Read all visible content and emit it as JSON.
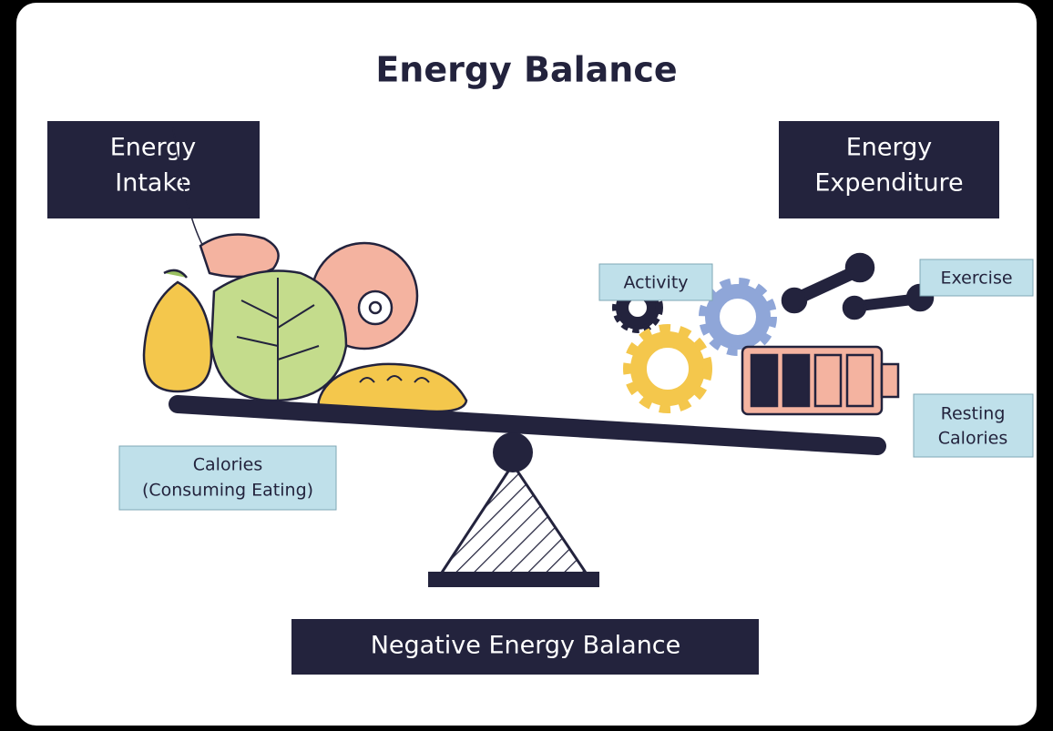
{
  "title": "Energy Balance",
  "labels": {
    "energy_intake": [
      "Energy",
      "Intake"
    ],
    "energy_expenditure": [
      "Energy",
      "Expenditure"
    ],
    "activity": "Activity",
    "exercise": "Exercise",
    "resting_calories": [
      "Resting",
      "Calories"
    ],
    "calories": [
      "Calories",
      "(Consuming Eating)"
    ],
    "result": "Negative Energy Balance"
  }
}
